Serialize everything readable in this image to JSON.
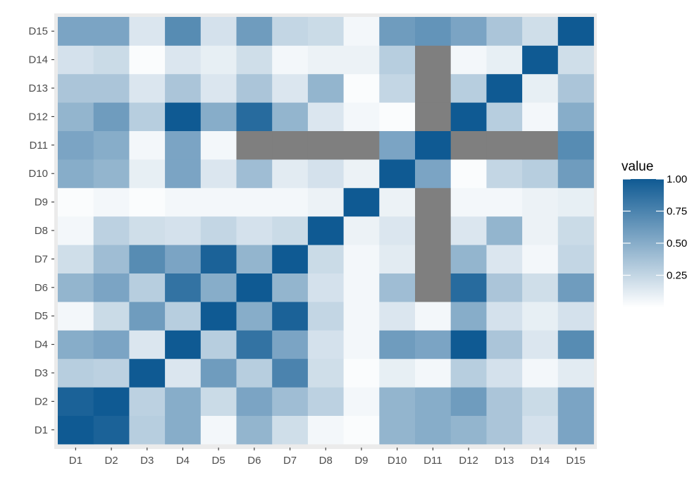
{
  "chart_data": {
    "type": "heatmap",
    "title": "",
    "xlabel": "",
    "ylabel": "",
    "x_categories": [
      "D1",
      "D2",
      "D3",
      "D4",
      "D5",
      "D6",
      "D7",
      "D8",
      "D9",
      "D10",
      "D11",
      "D12",
      "D13",
      "D14",
      "D15"
    ],
    "y_categories": [
      "D1",
      "D2",
      "D3",
      "D4",
      "D5",
      "D6",
      "D7",
      "D8",
      "D9",
      "D10",
      "D11",
      "D12",
      "D13",
      "D14",
      "D15"
    ],
    "missing_color": "#7f7f7f",
    "color_low": "#ffffff",
    "color_high": "#0f5a93",
    "value_range": [
      0,
      1
    ],
    "legend": {
      "title": "value",
      "breaks": [
        0.25,
        0.5,
        0.75,
        1.0
      ],
      "break_labels": [
        "0.25",
        "0.50",
        "0.75",
        "1.00"
      ],
      "placement": "right"
    },
    "rows": [
      {
        "y": "D1",
        "values": [
          1.0,
          0.95,
          0.3,
          0.5,
          0.05,
          0.45,
          0.2,
          0.05,
          0.02,
          0.45,
          0.5,
          0.45,
          0.35,
          0.18,
          0.55
        ]
      },
      {
        "y": "D2",
        "values": [
          0.95,
          1.0,
          0.28,
          0.5,
          0.22,
          0.55,
          0.4,
          0.28,
          0.05,
          0.45,
          0.5,
          0.6,
          0.35,
          0.22,
          0.55
        ]
      },
      {
        "y": "D3",
        "values": [
          0.3,
          0.28,
          1.0,
          0.15,
          0.6,
          0.3,
          0.75,
          0.2,
          0.02,
          0.1,
          0.05,
          0.3,
          0.18,
          0.05,
          0.12
        ]
      },
      {
        "y": "D4",
        "values": [
          0.5,
          0.55,
          0.15,
          1.0,
          0.3,
          0.85,
          0.55,
          0.18,
          0.05,
          0.6,
          0.55,
          1.0,
          0.35,
          0.15,
          0.7
        ]
      },
      {
        "y": "D5",
        "values": [
          0.05,
          0.22,
          0.6,
          0.3,
          1.0,
          0.5,
          0.95,
          0.25,
          0.05,
          0.15,
          0.05,
          0.5,
          0.18,
          0.1,
          0.18
        ]
      },
      {
        "y": "D6",
        "values": [
          0.45,
          0.55,
          0.3,
          0.85,
          0.5,
          1.0,
          0.45,
          0.18,
          0.05,
          0.4,
          null,
          0.9,
          0.35,
          0.2,
          0.6
        ]
      },
      {
        "y": "D7",
        "values": [
          0.2,
          0.4,
          0.7,
          0.55,
          0.95,
          0.45,
          1.0,
          0.22,
          0.05,
          0.12,
          null,
          0.45,
          0.15,
          0.05,
          0.25
        ]
      },
      {
        "y": "D8",
        "values": [
          0.05,
          0.28,
          0.2,
          0.18,
          0.25,
          0.18,
          0.22,
          1.0,
          0.08,
          0.15,
          null,
          0.15,
          0.45,
          0.08,
          0.22
        ]
      },
      {
        "y": "D9",
        "values": [
          0.02,
          0.05,
          0.02,
          0.05,
          0.05,
          0.05,
          0.05,
          0.08,
          1.0,
          0.08,
          null,
          0.05,
          0.05,
          0.08,
          0.1
        ]
      },
      {
        "y": "D10",
        "values": [
          0.5,
          0.45,
          0.1,
          0.55,
          0.15,
          0.4,
          0.12,
          0.18,
          0.08,
          1.0,
          0.55,
          0.02,
          0.25,
          0.3,
          0.6
        ]
      },
      {
        "y": "D11",
        "values": [
          0.55,
          0.5,
          0.05,
          0.55,
          0.05,
          null,
          null,
          null,
          null,
          0.55,
          1.0,
          null,
          null,
          null,
          0.7
        ]
      },
      {
        "y": "D12",
        "values": [
          0.45,
          0.6,
          0.3,
          1.0,
          0.5,
          0.9,
          0.45,
          0.15,
          0.05,
          0.02,
          null,
          1.0,
          0.3,
          0.05,
          0.5
        ]
      },
      {
        "y": "D13",
        "values": [
          0.35,
          0.35,
          0.15,
          0.35,
          0.15,
          0.35,
          0.15,
          0.45,
          0.02,
          0.25,
          null,
          0.3,
          1.0,
          0.1,
          0.35
        ]
      },
      {
        "y": "D14",
        "values": [
          0.18,
          0.22,
          0.02,
          0.15,
          0.1,
          0.2,
          0.05,
          0.08,
          0.08,
          0.3,
          null,
          0.05,
          0.1,
          1.0,
          0.2
        ]
      },
      {
        "y": "D15",
        "values": [
          0.55,
          0.55,
          0.15,
          0.7,
          0.18,
          0.6,
          0.25,
          0.22,
          0.05,
          0.6,
          0.65,
          0.55,
          0.35,
          0.2,
          1.0
        ]
      }
    ]
  }
}
